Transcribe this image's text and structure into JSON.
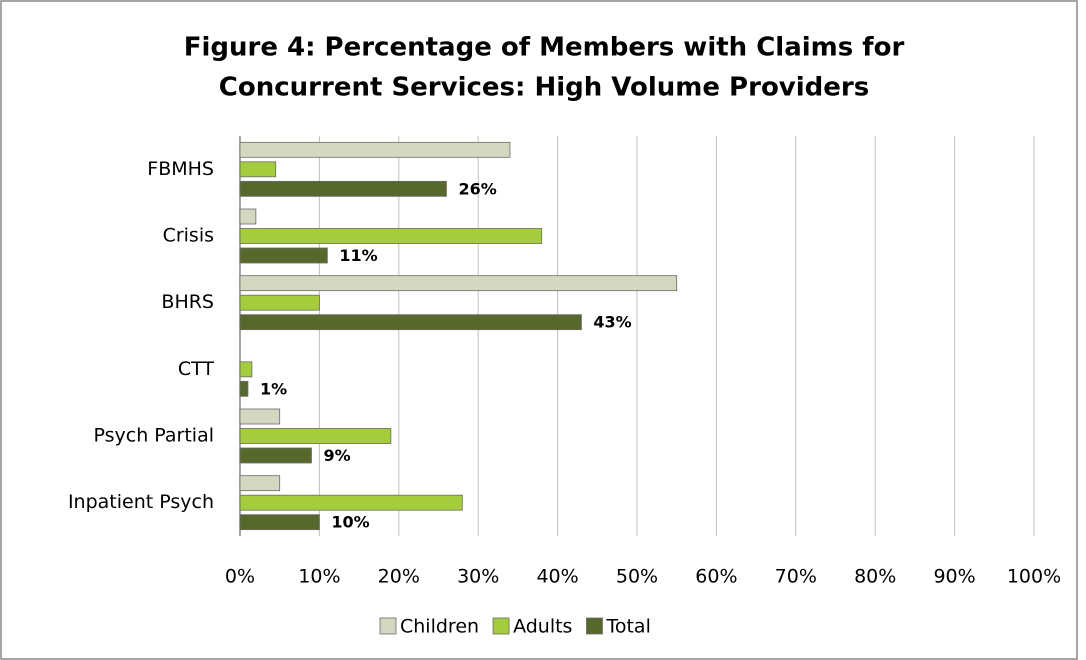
{
  "chart_data": {
    "type": "bar",
    "orientation": "horizontal",
    "title": [
      "Figure 4: Percentage of Members with Claims for",
      "Concurrent Services: High Volume Providers"
    ],
    "categories": [
      "FBMHS",
      "Crisis",
      "BHRS",
      "CTT",
      "Psych Partial",
      "Inpatient Psych"
    ],
    "series": [
      {
        "name": "Children",
        "color": "#d4d8c0",
        "values": [
          34,
          2,
          55,
          0,
          5,
          5
        ]
      },
      {
        "name": "Adults",
        "color": "#a4cc3c",
        "values": [
          4.5,
          38,
          10,
          1.5,
          19,
          28
        ]
      },
      {
        "name": "Total",
        "color": "#56682c",
        "values": [
          26,
          11,
          43,
          1,
          9,
          10
        ],
        "value_labels": [
          "26%",
          "11%",
          "43%",
          "1%",
          "9%",
          "10%"
        ]
      }
    ],
    "xlim": [
      0,
      100
    ],
    "xticks": [
      {
        "value": 0,
        "label": "0%"
      },
      {
        "value": 10,
        "label": "10%"
      },
      {
        "value": 20,
        "label": "20%"
      },
      {
        "value": 30,
        "label": "30%"
      },
      {
        "value": 40,
        "label": "40%"
      },
      {
        "value": 50,
        "label": "50%"
      },
      {
        "value": 60,
        "label": "60%"
      },
      {
        "value": 70,
        "label": "70%"
      },
      {
        "value": 80,
        "label": "80%"
      },
      {
        "value": 90,
        "label": "90%"
      },
      {
        "value": 100,
        "label": "100%"
      }
    ],
    "grid": true,
    "legend": "bottom"
  }
}
